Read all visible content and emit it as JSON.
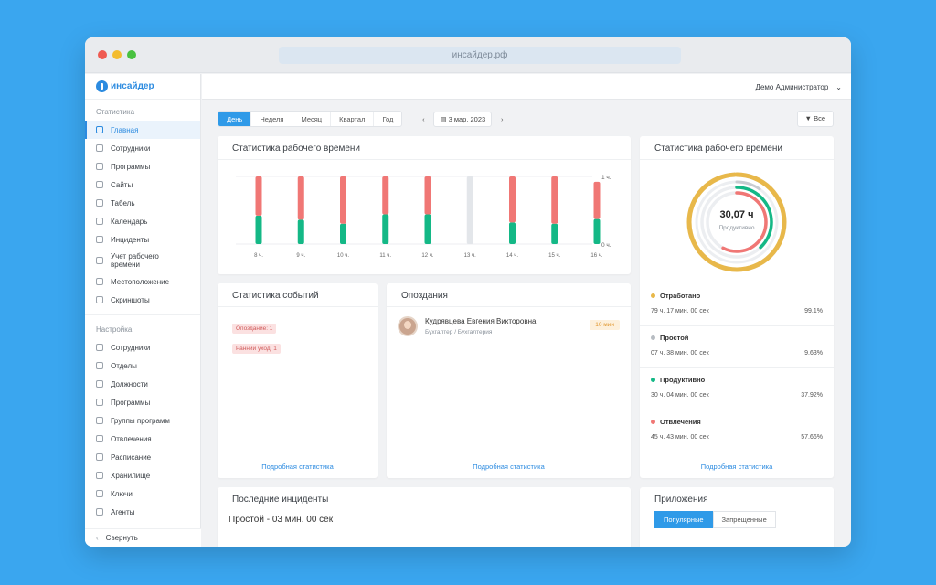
{
  "browser": {
    "url": "инсайдер.рф"
  },
  "app": {
    "logo_text": "инсайдер",
    "user": "Демо Администратор"
  },
  "sidebar": {
    "section1": "Статистика",
    "items1": [
      {
        "label": "Главная",
        "icon": "dashboard-icon",
        "active": true
      },
      {
        "label": "Сотрудники",
        "icon": "user-icon"
      },
      {
        "label": "Программы",
        "icon": "programs-icon"
      },
      {
        "label": "Сайты",
        "icon": "globe-icon"
      },
      {
        "label": "Табель",
        "icon": "table-icon"
      },
      {
        "label": "Календарь",
        "icon": "calendar-icon"
      },
      {
        "label": "Инциденты",
        "icon": "warning-icon"
      },
      {
        "label": "Учет рабочего времени",
        "icon": "clock-icon"
      },
      {
        "label": "Местоположение",
        "icon": "location-icon"
      },
      {
        "label": "Скриншоты",
        "icon": "screenshot-icon"
      }
    ],
    "section2": "Настройка",
    "items2": [
      {
        "label": "Сотрудники",
        "icon": "user-icon"
      },
      {
        "label": "Отделы",
        "icon": "departments-icon"
      },
      {
        "label": "Должности",
        "icon": "positions-icon"
      },
      {
        "label": "Программы",
        "icon": "programs-icon"
      },
      {
        "label": "Группы программ",
        "icon": "groups-icon"
      },
      {
        "label": "Отвлечения",
        "icon": "distraction-icon"
      },
      {
        "label": "Расписание",
        "icon": "schedule-icon"
      },
      {
        "label": "Хранилище",
        "icon": "storage-icon"
      },
      {
        "label": "Ключи",
        "icon": "key-icon"
      },
      {
        "label": "Агенты",
        "icon": "agent-icon"
      }
    ],
    "collapse": "Свернуть"
  },
  "toolbar": {
    "periods": [
      "День",
      "Неделя",
      "Месяц",
      "Квартал",
      "Год"
    ],
    "active_period": "День",
    "date": "3 мар. 2023",
    "filter": "Все"
  },
  "work_stats": {
    "title": "Статистика рабочего времени",
    "link": "Подробная статистика"
  },
  "chart_data": {
    "type": "bar",
    "categories": [
      "8 ч.",
      "9 ч.",
      "10 ч.",
      "11 ч.",
      "12 ч.",
      "13 ч.",
      "14 ч.",
      "15 ч.",
      "16 ч."
    ],
    "series": [
      {
        "values": [
          0.42,
          0.36,
          0.3,
          0.44,
          0.44,
          0,
          0.32,
          0.3,
          0.37
        ],
        "color": "#14b886"
      },
      {
        "values": [
          0.58,
          0.64,
          0.7,
          0.56,
          0.56,
          0,
          0.68,
          0.7,
          0.55
        ],
        "color": "#f07775"
      },
      {
        "values": [
          0,
          0,
          0,
          0,
          0,
          1,
          0,
          0,
          0
        ],
        "color": "#e3e6ea"
      }
    ],
    "ylim": [
      0,
      1
    ],
    "y_ticks": [
      "1 ч.",
      "0 ч."
    ]
  },
  "ring": {
    "title": "Статистика рабочего времени",
    "center_value": "30,07 ч",
    "center_label": "Продуктивно",
    "link": "Подробная статистика",
    "rings": [
      {
        "name": "Отработано",
        "fraction": 0.991,
        "color": "#e8b84a"
      },
      {
        "name": "Простой",
        "fraction": 0.0963,
        "color": "#c9ccd1"
      },
      {
        "name": "Продуктивно",
        "fraction": 0.3792,
        "color": "#14b886"
      },
      {
        "name": "Отвлечения",
        "fraction": 0.5766,
        "color": "#f07775"
      }
    ],
    "stats": [
      {
        "name": "Отработано",
        "time": "79 ч. 17 мин. 00 сек",
        "pct": "99.1%",
        "color": "#e8b84a"
      },
      {
        "name": "Простой",
        "time": "07 ч. 38 мин. 00 сек",
        "pct": "9.63%",
        "color": "#b7bcc2"
      },
      {
        "name": "Продуктивно",
        "time": "30 ч. 04 мин. 00 сек",
        "pct": "37.92%",
        "color": "#14b886"
      },
      {
        "name": "Отвлечения",
        "time": "45 ч. 43 мин. 00 сек",
        "pct": "57.66%",
        "color": "#f07775"
      }
    ]
  },
  "events": {
    "title": "Статистика событий",
    "tags": [
      "Опоздание: 1",
      "Ранний уход: 1"
    ],
    "link": "Подробная статистика"
  },
  "late": {
    "title": "Опоздания",
    "person": "Кудрявцева Евгения Викторовна",
    "role": "Бухгалтер / Бухгалтерия",
    "badge": "10 мин",
    "link": "Подробная статистика"
  },
  "incidents": {
    "title": "Последние инциденты",
    "first": "Простой - 03 мин. 00 сек"
  },
  "apps": {
    "title": "Приложения",
    "tabs": [
      "Популярные",
      "Запрещенные"
    ]
  }
}
